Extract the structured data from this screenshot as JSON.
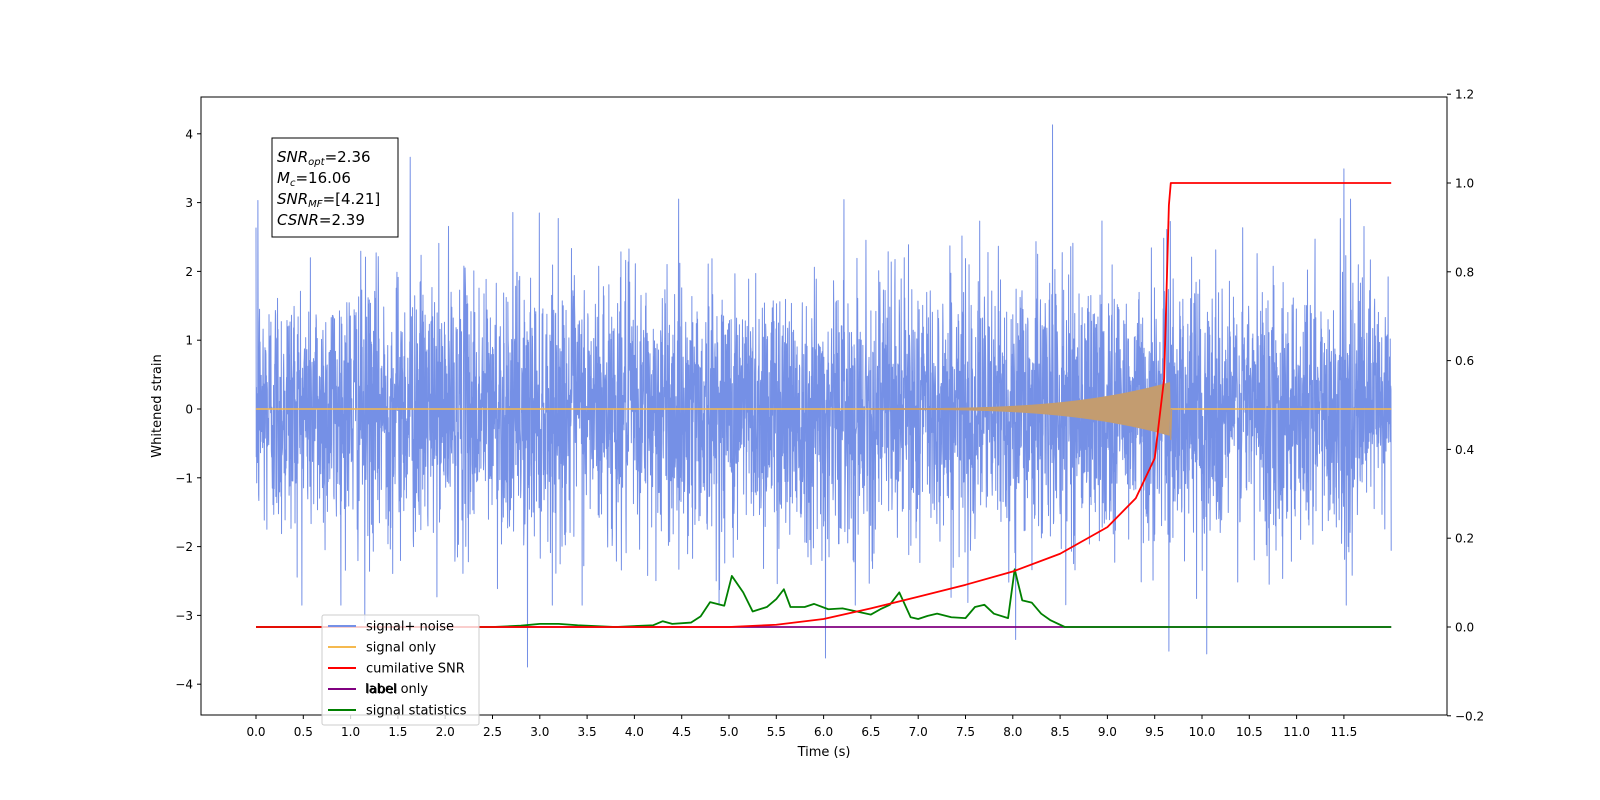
{
  "chart_data": {
    "type": "line",
    "xlabel": "Time (s)",
    "ylabel": "Whitened strain",
    "xlim": [
      -0.5,
      12.5
    ],
    "ylim": [
      -4.45,
      4.5
    ],
    "y2lim": [
      -0.2,
      1.2
    ],
    "x_ticks": [
      "0.0",
      "0.5",
      "1.0",
      "1.5",
      "2.0",
      "2.5",
      "3.0",
      "3.5",
      "4.0",
      "4.5",
      "5.0",
      "5.5",
      "6.0",
      "6.5",
      "7.0",
      "7.5",
      "8.0",
      "8.5",
      "9.0",
      "9.5",
      "10.0",
      "10.5",
      "11.0",
      "11.5"
    ],
    "y_ticks": [
      {
        "v": 4,
        "label": "4"
      },
      {
        "v": 3,
        "label": "3"
      },
      {
        "v": 2,
        "label": "2"
      },
      {
        "v": 1,
        "label": "1"
      },
      {
        "v": 0,
        "label": "0"
      },
      {
        "v": -1,
        "label": "−1"
      },
      {
        "v": -2,
        "label": "−2"
      },
      {
        "v": -3,
        "label": "−3"
      },
      {
        "v": -4,
        "label": "−4"
      }
    ],
    "y2_ticks": [
      "1.2",
      "1.0",
      "0.8",
      "0.6",
      "0.4",
      "0.2",
      "0.0",
      "−0.2"
    ],
    "grid": false,
    "legend_placement": "lower-left",
    "colors": {
      "signal_noise": "#7590e6",
      "signal_only": "#f5b94f",
      "chirp": "#c39c70",
      "cumulative_snr": "#ff0000",
      "label": "#800080",
      "signal_statistics": "#008000"
    },
    "series": [
      {
        "name": "signal+ noise",
        "axis": "left",
        "description_values": "whitened noise, sample range −3.75 to 4.13, samples from 0.0 to 12.0 s",
        "envelope": {
          "min": -3.75,
          "max": 4.13
        },
        "notable_peaks": [
          [
            0.02,
            3.03
          ],
          [
            1.63,
            3.66
          ],
          [
            2.87,
            -3.75
          ],
          [
            6.02,
            -3.62
          ],
          [
            8.42,
            4.13
          ],
          [
            11.5,
            3.49
          ],
          [
            9.65,
            -3.52
          ],
          [
            10.05,
            -3.56
          ],
          [
            1.15,
            -3.1
          ],
          [
            8.03,
            -3.35
          ]
        ]
      },
      {
        "name": "signal only",
        "axis": "left",
        "chirp_start": 6.5,
        "merger_time": 9.66,
        "peak_amplitude": 0.38
      },
      {
        "name": "cumilative SNR",
        "axis": "right",
        "points": [
          [
            0.0,
            0.0
          ],
          [
            5.0,
            0.0
          ],
          [
            5.5,
            0.005
          ],
          [
            6.0,
            0.018
          ],
          [
            6.5,
            0.042
          ],
          [
            7.0,
            0.068
          ],
          [
            7.5,
            0.095
          ],
          [
            8.0,
            0.125
          ],
          [
            8.5,
            0.165
          ],
          [
            9.0,
            0.225
          ],
          [
            9.3,
            0.29
          ],
          [
            9.5,
            0.38
          ],
          [
            9.6,
            0.56
          ],
          [
            9.65,
            0.95
          ],
          [
            9.67,
            1.0
          ],
          [
            12.0,
            1.0
          ]
        ]
      },
      {
        "name": "label",
        "axis": "right",
        "points": [
          [
            0.0,
            0.0
          ],
          [
            12.0,
            0.0
          ]
        ]
      },
      {
        "name": "signal statistics",
        "axis": "right",
        "points": [
          [
            0.0,
            0.0
          ],
          [
            2.5,
            0.0
          ],
          [
            2.8,
            0.003
          ],
          [
            3.0,
            0.007
          ],
          [
            3.2,
            0.007
          ],
          [
            3.4,
            0.004
          ],
          [
            3.8,
            0.0
          ],
          [
            4.2,
            0.004
          ],
          [
            4.3,
            0.013
          ],
          [
            4.4,
            0.007
          ],
          [
            4.6,
            0.01
          ],
          [
            4.7,
            0.024
          ],
          [
            4.8,
            0.056
          ],
          [
            4.95,
            0.048
          ],
          [
            5.03,
            0.115
          ],
          [
            5.15,
            0.078
          ],
          [
            5.25,
            0.035
          ],
          [
            5.4,
            0.045
          ],
          [
            5.5,
            0.063
          ],
          [
            5.58,
            0.085
          ],
          [
            5.65,
            0.045
          ],
          [
            5.8,
            0.045
          ],
          [
            5.9,
            0.052
          ],
          [
            6.05,
            0.04
          ],
          [
            6.2,
            0.042
          ],
          [
            6.35,
            0.035
          ],
          [
            6.5,
            0.028
          ],
          [
            6.6,
            0.04
          ],
          [
            6.7,
            0.05
          ],
          [
            6.8,
            0.078
          ],
          [
            6.92,
            0.022
          ],
          [
            7.0,
            0.018
          ],
          [
            7.1,
            0.025
          ],
          [
            7.2,
            0.03
          ],
          [
            7.35,
            0.022
          ],
          [
            7.5,
            0.02
          ],
          [
            7.6,
            0.045
          ],
          [
            7.7,
            0.05
          ],
          [
            7.8,
            0.03
          ],
          [
            7.95,
            0.02
          ],
          [
            8.02,
            0.13
          ],
          [
            8.1,
            0.06
          ],
          [
            8.2,
            0.055
          ],
          [
            8.3,
            0.03
          ],
          [
            8.4,
            0.015
          ],
          [
            8.55,
            0.0
          ],
          [
            12.0,
            0.0
          ]
        ]
      }
    ],
    "annotation": {
      "lines": [
        {
          "name": "SNR",
          "sub": "opt",
          "value": "=2.36"
        },
        {
          "name": "M",
          "sub": "c",
          "value": "=16.06"
        },
        {
          "name": "SNR",
          "sub": "MF",
          "value": "=[4.21]"
        },
        {
          "name": "CSNR",
          "sub": "",
          "value": "=2.39"
        }
      ]
    },
    "legend": [
      {
        "label": "signal+ noise",
        "color": "#7590e6"
      },
      {
        "label": "signal only",
        "color": "#f5b94f"
      },
      {
        "label": "cumilative SNR",
        "color": "#ff0000"
      },
      {
        "label": "label",
        "color": "#800080"
      },
      {
        "label": "signal statistics",
        "color": "#008000"
      }
    ],
    "hidden_legend_fragments": [
      "label only",
      "signal+ noise"
    ]
  }
}
